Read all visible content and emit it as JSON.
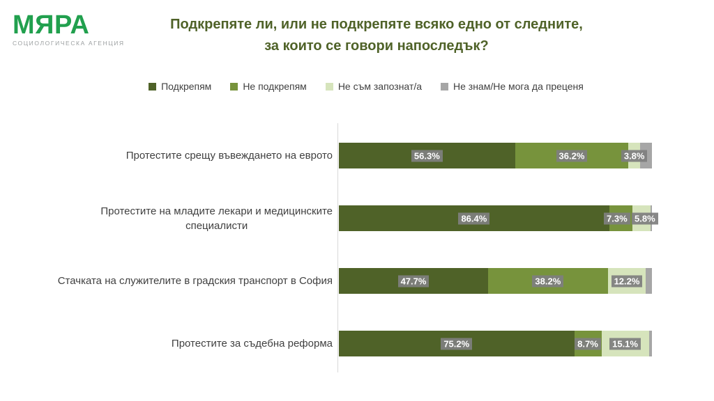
{
  "logo": {
    "wordmark": "МЯРА",
    "subtitle": "СОЦИОЛОГИЧЕСКА АГЕНЦИЯ"
  },
  "chart_data": {
    "type": "bar",
    "orientation": "horizontal",
    "stacked": true,
    "title": "Подкрепяте ли, или не подкрепяте всяко едно от следните,\nза които се говори напоследък?",
    "categories": [
      "Протестите срещу въвеждането на еврото",
      "Протестите на младите лекари и медицинските\nспециалисти",
      "Стачката на служителите в градския транспорт в София",
      "Протестите за съдебна реформа"
    ],
    "series": [
      {
        "key": "support",
        "name": "Подкрепям",
        "color": "#4F6228",
        "show_labels": true,
        "values": [
          56.3,
          86.4,
          47.7,
          75.2
        ]
      },
      {
        "key": "not-support",
        "name": "Не подкрепям",
        "color": "#77933C",
        "show_labels": true,
        "values": [
          36.2,
          7.3,
          38.2,
          8.7
        ]
      },
      {
        "key": "not-familiar",
        "name": "Не съм запознат/а",
        "color": "#D6E4BC",
        "show_labels": true,
        "values": [
          3.8,
          5.8,
          12.2,
          15.1
        ]
      },
      {
        "key": "dont-know",
        "name": "Не знам/Не мога да преценя",
        "color": "#A6A6A6",
        "show_labels": false,
        "values": [
          3.7,
          0.5,
          1.9,
          1.0
        ]
      }
    ],
    "xlim": [
      0,
      100
    ],
    "value_suffix": "%",
    "legend_position": "top",
    "grid": false
  },
  "colors": {
    "background": "#FFFFFF",
    "title_green": "#4F6228",
    "logo_green": "#21A04E",
    "logo_subtitle_gray": "#9B9FA0",
    "category_text": "#404040",
    "legend_text": "#404040",
    "axis_line": "#D9D9D9",
    "value_label_bg": "#7F7F7F",
    "value_label_text": "#FFFFFF"
  }
}
